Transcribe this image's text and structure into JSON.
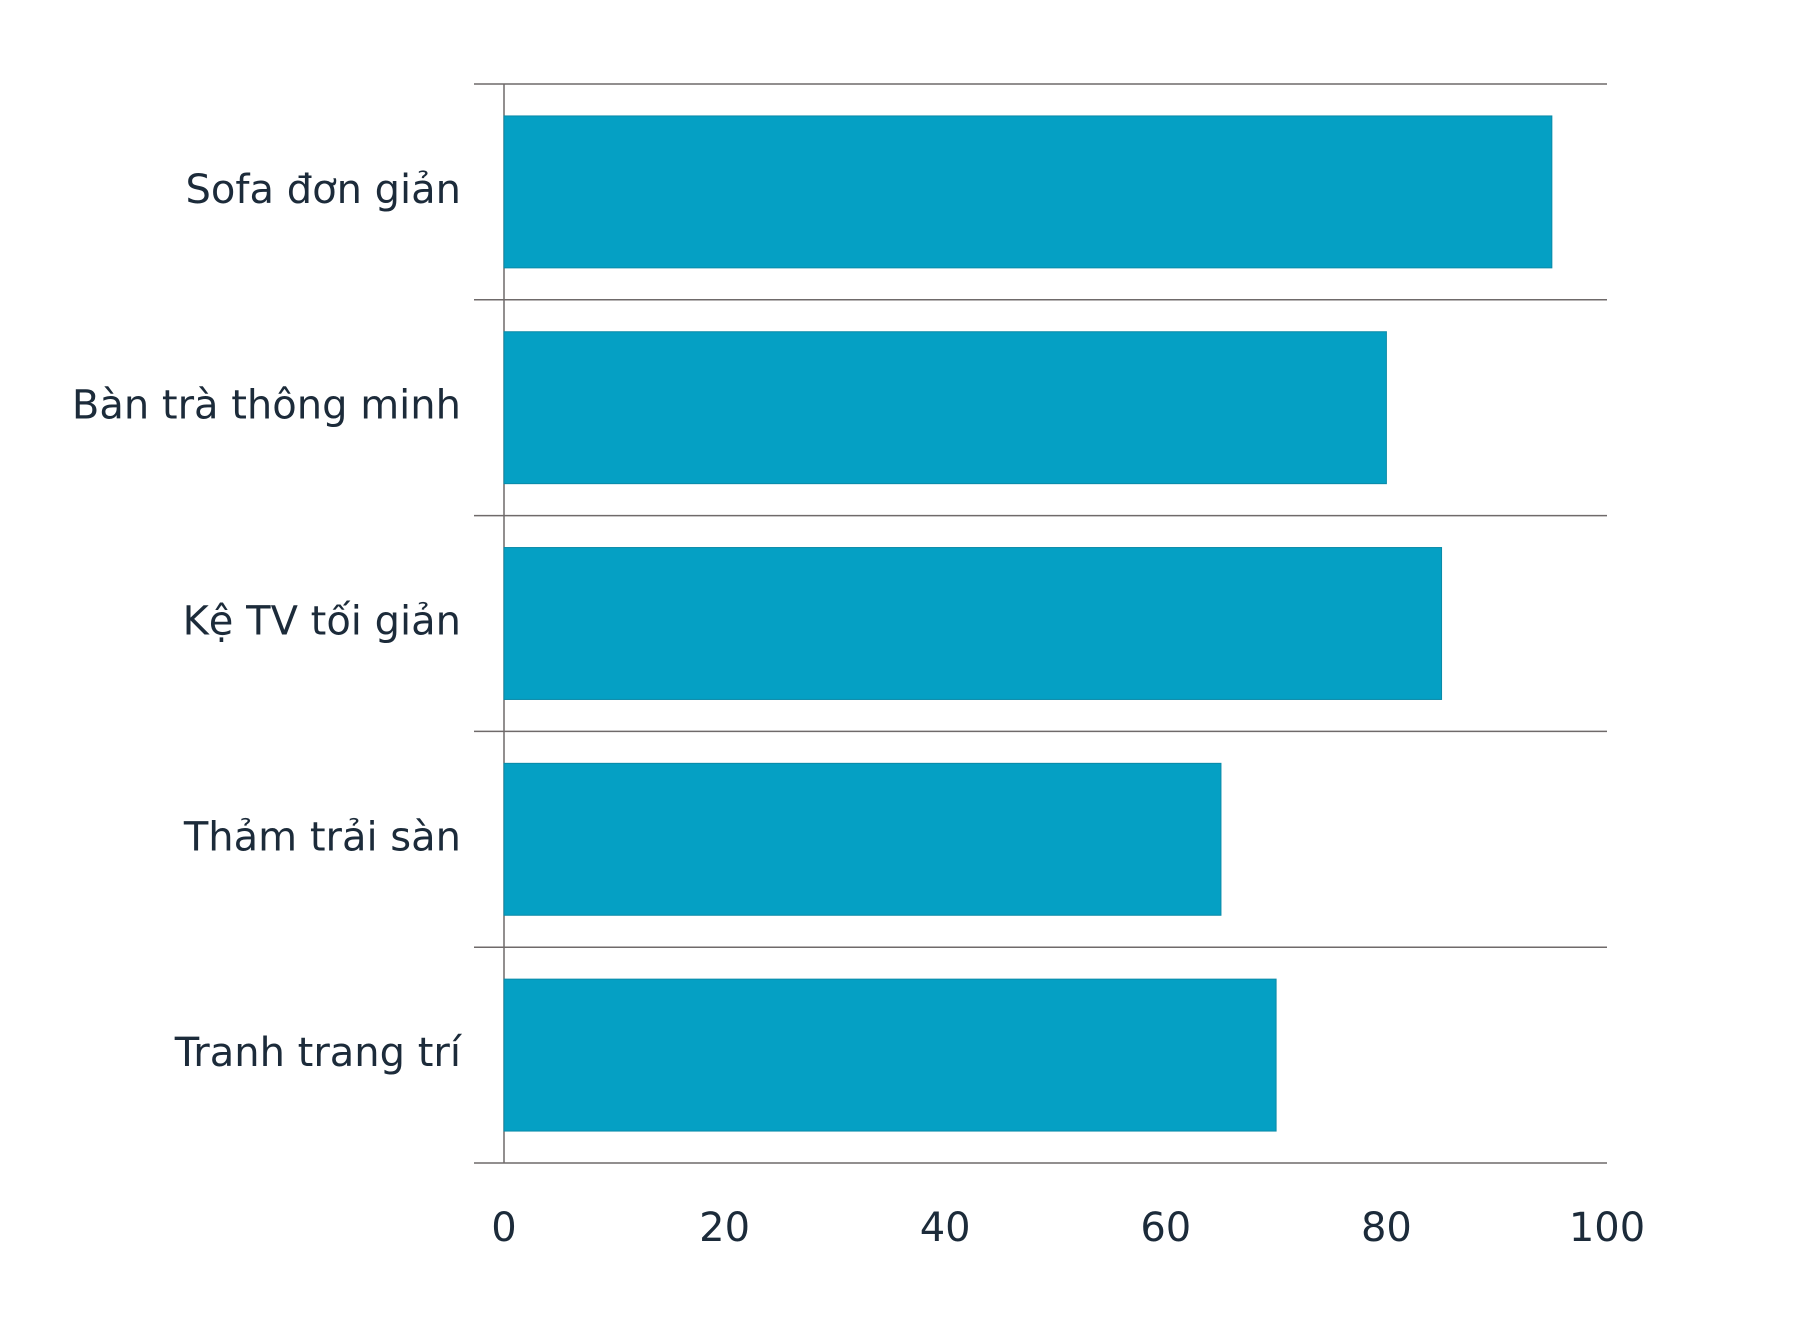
{
  "chart_data": {
    "type": "bar",
    "orientation": "horizontal",
    "categories": [
      "Sofa đơn giản",
      "Bàn trà thông minh",
      "Kệ TV tối giản",
      "Thảm trải sàn",
      "Tranh trang trí"
    ],
    "values": [
      95,
      80,
      85,
      65,
      70
    ],
    "color": "#05a0c4",
    "xlim": [
      0,
      100
    ],
    "xticks": [
      0,
      20,
      40,
      60,
      80,
      100
    ]
  }
}
